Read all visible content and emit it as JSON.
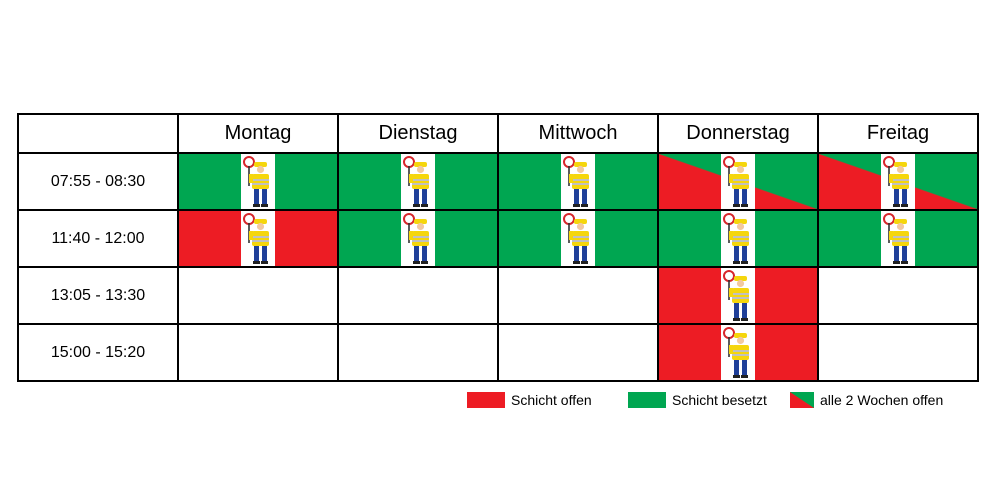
{
  "schedule": {
    "days": [
      "Montag",
      "Dienstag",
      "Mittwoch",
      "Donnerstag",
      "Freitag"
    ],
    "rows": [
      {
        "time": "07:55 - 08:30",
        "cells": [
          "besetzt",
          "besetzt",
          "besetzt",
          "wechsel",
          "wechsel"
        ]
      },
      {
        "time": "11:40 - 12:00",
        "cells": [
          "offen",
          "besetzt",
          "besetzt",
          "besetzt",
          "besetzt"
        ]
      },
      {
        "time": "13:05 - 13:30",
        "cells": [
          "none",
          "none",
          "none",
          "offen",
          "none"
        ]
      },
      {
        "time": "15:00 - 15:20",
        "cells": [
          "none",
          "none",
          "none",
          "offen",
          "none"
        ]
      }
    ]
  },
  "legend": {
    "offen": "Schicht offen",
    "besetzt": "Schicht besetzt",
    "wechsel": "alle 2 Wochen offen"
  },
  "colors": {
    "offen": "#ed1c24",
    "besetzt": "#00a651"
  },
  "icon": "crossing-guard-icon"
}
